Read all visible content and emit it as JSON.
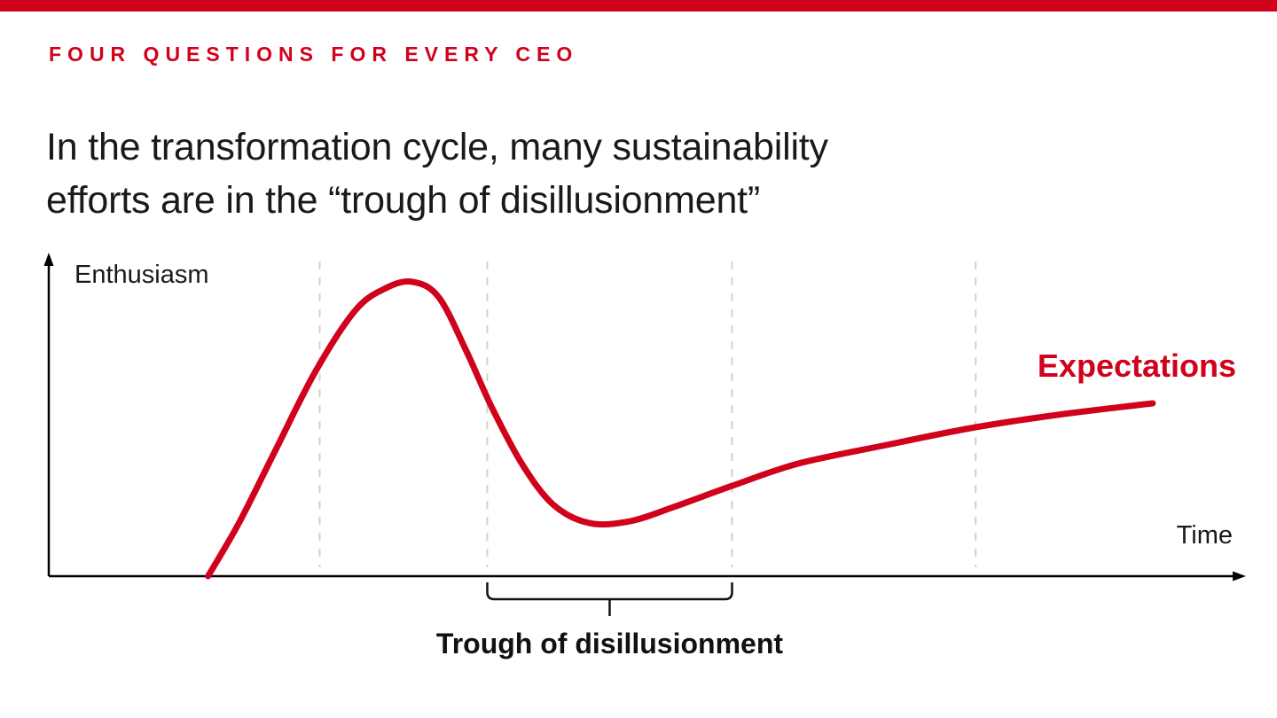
{
  "page": {
    "eyebrow": "FOUR QUESTIONS FOR EVERY CEO",
    "title_lines": [
      "In the transformation cycle, many sustainability",
      "efforts are in the “trough of disillusionment”"
    ]
  },
  "colors": {
    "accent_red": "#d0021b",
    "axis": "#000000",
    "dashed_line": "#d9d1c4",
    "text": "#1a1a1a",
    "annotation": "#111111"
  },
  "chart_data": {
    "type": "line",
    "title": "In the transformation cycle, many sustainability efforts are in the “trough of disillusionment”",
    "xlabel": "Time",
    "ylabel": "Enthusiasm",
    "xlim": [
      0,
      1
    ],
    "ylim": [
      0,
      1
    ],
    "legend_position": "inline-right",
    "gridlines": "dashed-vertical",
    "gridlines_x_dashed": [
      0.228,
      0.369,
      0.575,
      0.78
    ],
    "series": [
      {
        "name": "Expectations",
        "color": "#d0021b",
        "x": [
          0.134,
          0.16,
          0.19,
          0.224,
          0.258,
          0.284,
          0.306,
          0.328,
          0.351,
          0.373,
          0.399,
          0.425,
          0.455,
          0.489,
          0.526,
          0.575,
          0.631,
          0.705,
          0.78,
          0.855,
          0.929
        ],
        "y": [
          0.0,
          0.171,
          0.4,
          0.657,
          0.857,
          0.929,
          0.949,
          0.9,
          0.729,
          0.543,
          0.357,
          0.229,
          0.171,
          0.177,
          0.223,
          0.291,
          0.363,
          0.423,
          0.48,
          0.523,
          0.557
        ]
      }
    ],
    "annotation": {
      "label": "Trough of disillusionment",
      "x_range": [
        0.369,
        0.575
      ]
    }
  }
}
